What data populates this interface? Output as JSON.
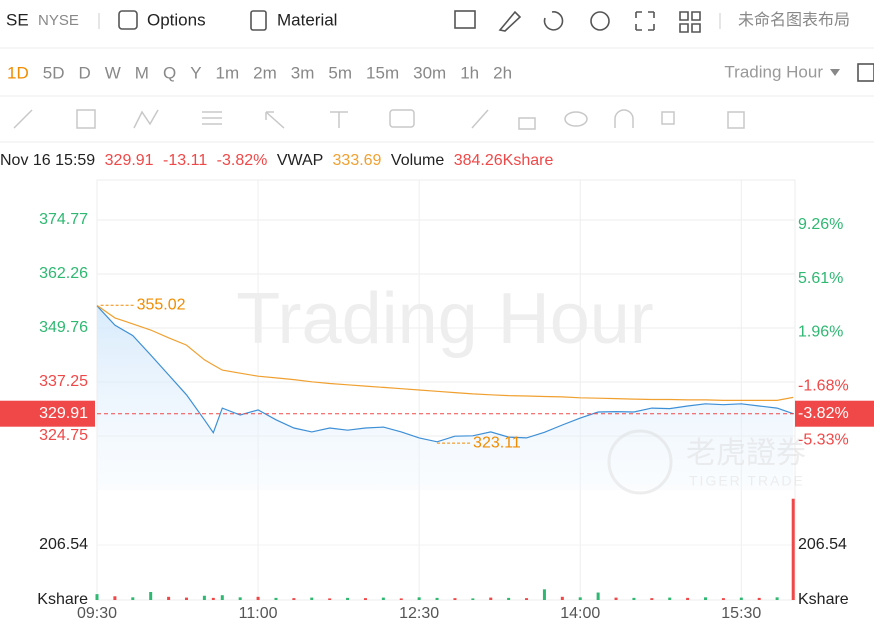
{
  "header": {
    "symbol": "SE",
    "exchange": "NYSE",
    "options": "Options",
    "material": "Material",
    "layout": "未命名图表布局"
  },
  "periods": [
    "1D",
    "5D",
    "D",
    "W",
    "M",
    "Q",
    "Y",
    "1m",
    "2m",
    "3m",
    "5m",
    "15m",
    "30m",
    "1h",
    "2h"
  ],
  "active_period": 0,
  "session": "Trading Hour",
  "quote": {
    "date": "Nov 16 15:59",
    "price": "329.91",
    "change": "-13.11",
    "change_pct": "-3.82%",
    "vwap_label": "VWAP",
    "vwap": "333.69",
    "volume_label": "Volume",
    "volume": "384.26Kshare"
  },
  "watermark": "Trading Hour",
  "logo": {
    "cn": "老虎證券",
    "en": "TIGER TRADE"
  },
  "chart_data": {
    "type": "line",
    "x": [
      "09:30",
      "09:40",
      "09:50",
      "10:00",
      "10:10",
      "10:20",
      "10:30",
      "10:35",
      "10:40",
      "10:50",
      "11:00",
      "11:10",
      "11:20",
      "11:30",
      "11:40",
      "11:50",
      "12:00",
      "12:10",
      "12:20",
      "12:30",
      "12:40",
      "12:50",
      "13:00",
      "13:10",
      "13:20",
      "13:30",
      "13:40",
      "13:50",
      "14:00",
      "14:10",
      "14:20",
      "14:30",
      "14:40",
      "14:50",
      "15:00",
      "15:10",
      "15:20",
      "15:30",
      "15:40",
      "15:50",
      "15:59"
    ],
    "xlim": [
      "09:30",
      "16:00"
    ],
    "xticks": [
      "09:30",
      "11:00",
      "12:30",
      "14:00",
      "15:30"
    ],
    "series": [
      {
        "color": "#3d8fd6",
        "values": [
          354.9,
          350.4,
          348.0,
          343.5,
          338.9,
          334.3,
          328.5,
          325.5,
          331.2,
          329.6,
          330.8,
          328.5,
          326.6,
          325.7,
          326.6,
          326.1,
          326.6,
          326.8,
          325.7,
          324.3,
          323.4,
          324.7,
          324.8,
          325.7,
          324.5,
          324.3,
          325.6,
          327.3,
          328.9,
          330.3,
          330.4,
          330.3,
          331.2,
          331.1,
          331.7,
          332.2,
          332.0,
          332.2,
          331.7,
          331.2,
          329.91
        ]
      },
      {
        "color": "#f0a030",
        "values": [
          355.0,
          352.1,
          350.7,
          349.3,
          347.5,
          345.8,
          342.4,
          341.2,
          340.0,
          339.3,
          338.6,
          338.2,
          337.8,
          337.3,
          336.9,
          336.6,
          336.3,
          336.0,
          335.7,
          335.4,
          335.1,
          334.8,
          334.5,
          334.3,
          334.1,
          334.0,
          333.9,
          333.8,
          333.6,
          333.5,
          333.4,
          333.3,
          333.2,
          333.2,
          333.1,
          333.1,
          333.0,
          333.0,
          333.0,
          333.0,
          333.69
        ]
      }
    ],
    "ylim": [
      312.24,
      382.88
    ],
    "yticks": [
      374.77,
      362.26,
      349.76,
      337.25,
      324.75
    ],
    "y2lim": [
      -8.71,
      11.95
    ],
    "y2ticks": [
      {
        "value": 9.26,
        "label": "9.26%"
      },
      {
        "value": 5.61,
        "label": "5.61%"
      },
      {
        "value": 1.96,
        "label": "1.96%"
      },
      {
        "value": -1.68,
        "label": "-1.68%"
      },
      {
        "value": -5.33,
        "label": "-5.33%"
      }
    ],
    "up_color": "#2eb872",
    "down_color": "#f04848",
    "annotations": [
      {
        "label": "355.02",
        "value": 355.02,
        "x": "09:32"
      },
      {
        "label": "323.11",
        "value": 323.11,
        "x": "12:40"
      }
    ],
    "last": {
      "value": 329.91,
      "label": "329.91",
      "pct": {
        "value": -3.82,
        "label": "-3.82%"
      }
    },
    "volume": {
      "unit": "Kshare",
      "ylim": [
        0,
        439
      ],
      "yticks": [
        206.54
      ],
      "values": [
        22,
        14,
        10,
        30,
        12,
        9,
        16,
        8,
        18,
        10,
        12,
        8,
        7,
        9,
        6,
        8,
        7,
        9,
        6,
        10,
        8,
        7,
        6,
        9,
        8,
        7,
        40,
        12,
        10,
        28,
        9,
        8,
        7,
        9,
        8,
        10,
        7,
        9,
        8,
        10,
        380
      ],
      "colors": [
        "#2eb872",
        "#f04848",
        "#2eb872",
        "#2eb872",
        "#f04848",
        "#f04848",
        "#2eb872",
        "#f04848",
        "#2eb872",
        "#2eb872",
        "#f04848",
        "#2eb872",
        "#f04848",
        "#2eb872",
        "#f04848",
        "#2eb872",
        "#f04848",
        "#2eb872",
        "#f04848",
        "#2eb872",
        "#2eb872",
        "#f04848",
        "#2eb872",
        "#f04848",
        "#2eb872",
        "#f04848",
        "#2eb872",
        "#f04848",
        "#2eb872",
        "#2eb872",
        "#f04848",
        "#2eb872",
        "#f04848",
        "#2eb872",
        "#f04848",
        "#2eb872",
        "#f04848",
        "#2eb872",
        "#f04848",
        "#2eb872",
        "#f04848"
      ]
    }
  }
}
